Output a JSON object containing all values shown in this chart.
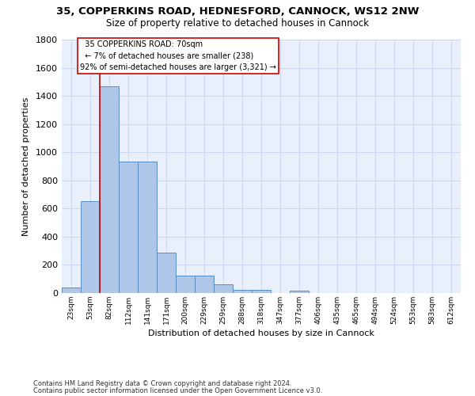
{
  "title1": "35, COPPERKINS ROAD, HEDNESFORD, CANNOCK, WS12 2NW",
  "title2": "Size of property relative to detached houses in Cannock",
  "xlabel": "Distribution of detached houses by size in Cannock",
  "ylabel": "Number of detached properties",
  "footer1": "Contains HM Land Registry data © Crown copyright and database right 2024.",
  "footer2": "Contains public sector information licensed under the Open Government Licence v3.0.",
  "bar_labels": [
    "23sqm",
    "53sqm",
    "82sqm",
    "112sqm",
    "141sqm",
    "171sqm",
    "200sqm",
    "229sqm",
    "259sqm",
    "288sqm",
    "318sqm",
    "347sqm",
    "377sqm",
    "406sqm",
    "435sqm",
    "465sqm",
    "494sqm",
    "524sqm",
    "553sqm",
    "583sqm",
    "612sqm"
  ],
  "bar_values": [
    40,
    650,
    1470,
    935,
    935,
    285,
    125,
    125,
    60,
    25,
    20,
    0,
    15,
    0,
    0,
    0,
    0,
    0,
    0,
    0,
    0
  ],
  "bar_color": "#aec6e8",
  "bar_edge_color": "#5a8fc2",
  "annotation_line1": "  35 COPPERKINS ROAD: 70sqm",
  "annotation_line2": "  ← 7% of detached houses are smaller (238)",
  "annotation_line3": "92% of semi-detached houses are larger (3,321) →",
  "red_line_x": 1.5,
  "ylim": [
    0,
    1800
  ],
  "yticks": [
    0,
    200,
    400,
    600,
    800,
    1000,
    1200,
    1400,
    1600,
    1800
  ],
  "bg_color": "#eaf0fb",
  "grid_color": "#d0d8ee",
  "annotation_color": "#cc0000",
  "title1_fontsize": 9.5,
  "title2_fontsize": 8.5
}
